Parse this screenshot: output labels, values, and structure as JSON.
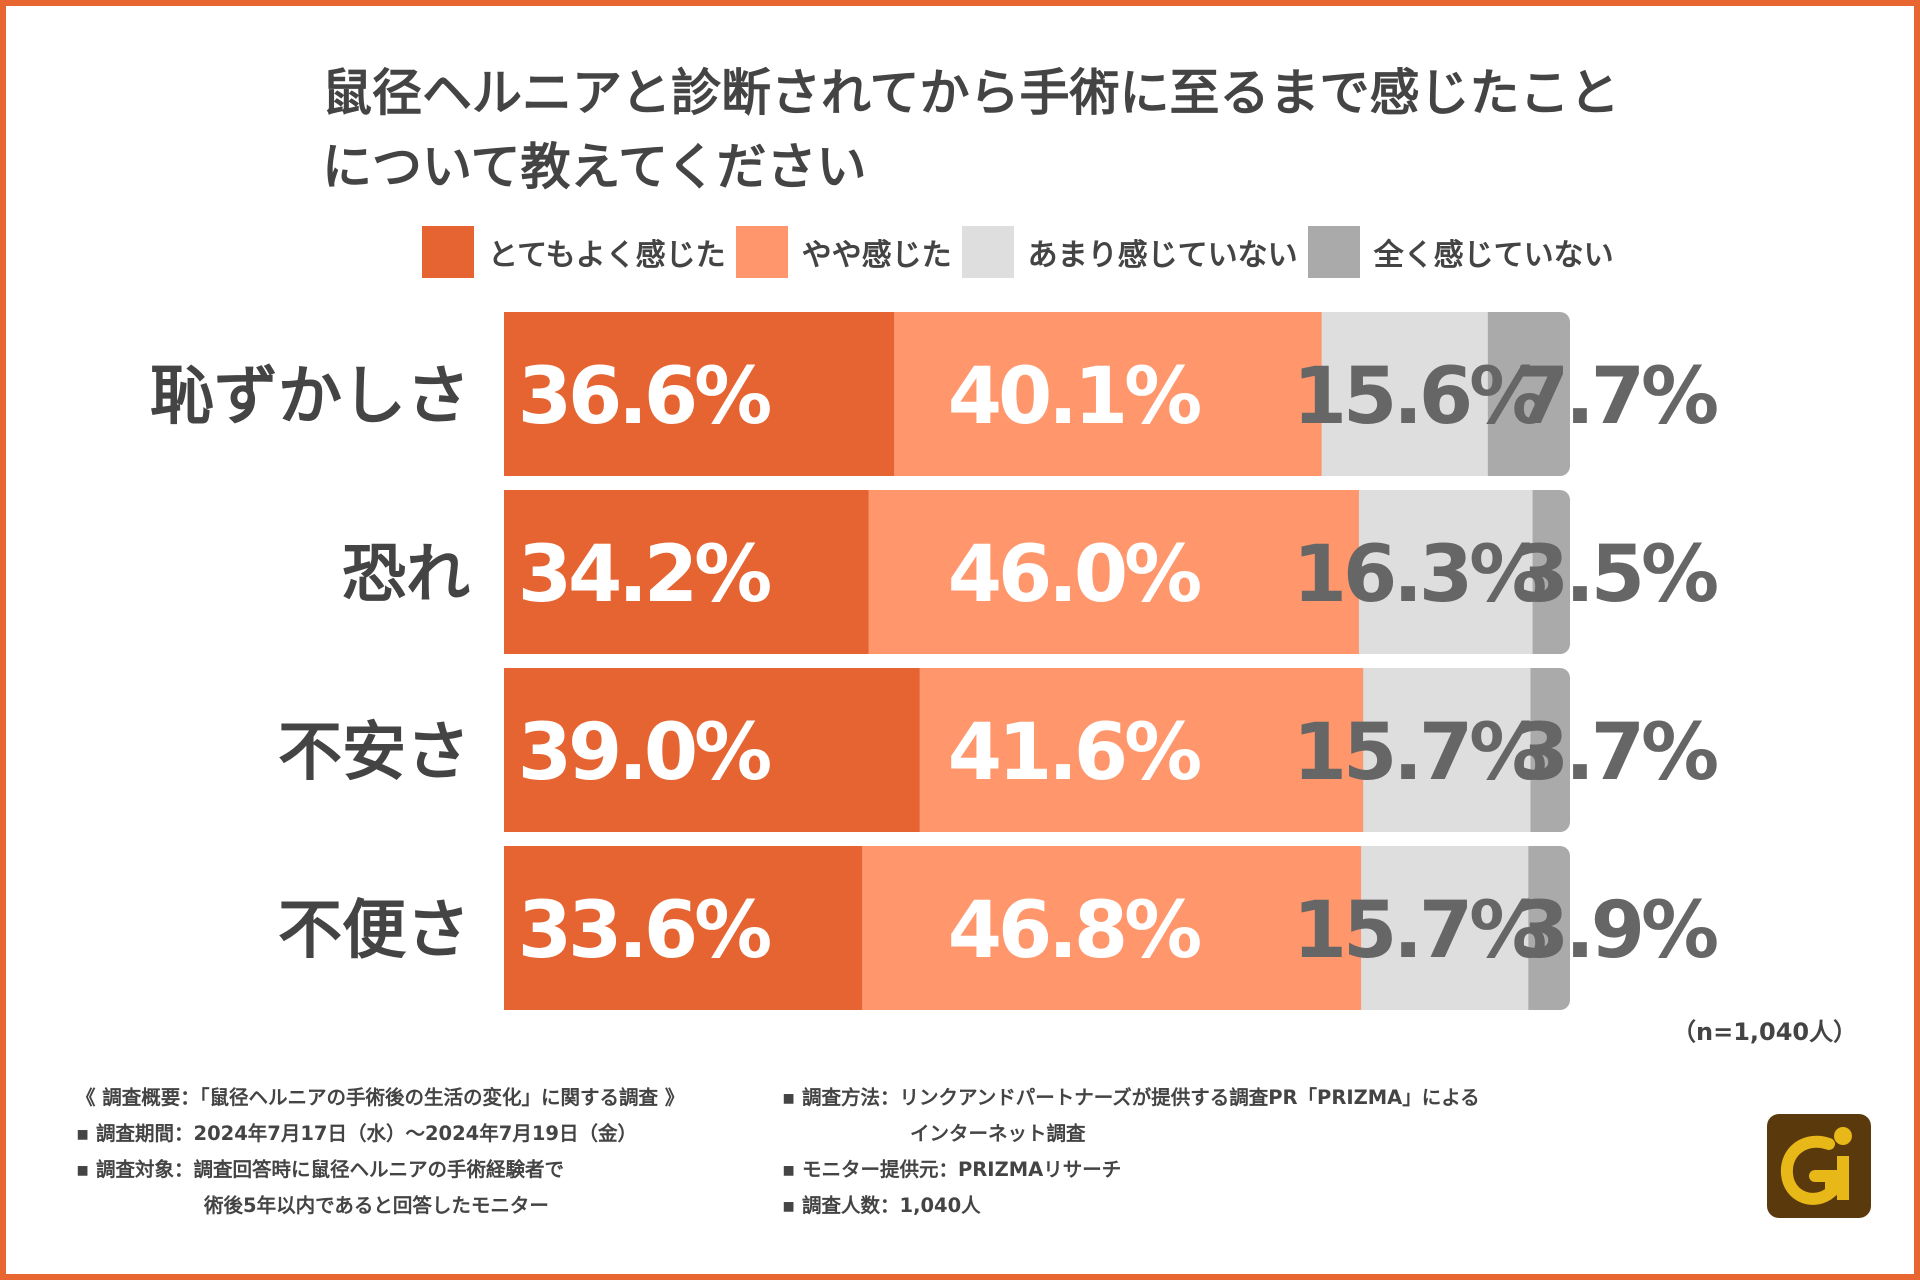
{
  "title": {
    "line1": "鼠径ヘルニアと診断されてから手術に至るまで感じたこと",
    "line2": "について教えてください"
  },
  "legend": [
    {
      "label": "とてもよく感じた",
      "color": "#e66432"
    },
    {
      "label": "やや感じた",
      "color": "#ff966c"
    },
    {
      "label": "あまり感じていない",
      "color": "#dedede"
    },
    {
      "label": "全く感じていない",
      "color": "#aaaaaa"
    }
  ],
  "chart_data": {
    "type": "bar",
    "orientation": "horizontal",
    "stacked": true,
    "percent_stacked": true,
    "categories": [
      "恥ずかしさ",
      "恐れ",
      "不安さ",
      "不便さ"
    ],
    "series": [
      {
        "name": "とてもよく感じた",
        "values": [
          36.6,
          34.2,
          39.0,
          33.6
        ],
        "labels": [
          "36.6%",
          "34.2%",
          "39.0%",
          "33.6%"
        ],
        "color": "#e66432",
        "label_color": "#ffffff"
      },
      {
        "name": "やや感じた",
        "values": [
          40.1,
          46.0,
          41.6,
          46.8
        ],
        "labels": [
          "40.1%",
          "46.0%",
          "41.6%",
          "46.8%"
        ],
        "color": "#ff966c",
        "label_color": "#ffffff"
      },
      {
        "name": "あまり感じていない",
        "values": [
          15.6,
          16.3,
          15.7,
          15.7
        ],
        "labels": [
          "15.6%",
          "16.3%",
          "15.7%",
          "15.7%"
        ],
        "color": "#dedede",
        "label_color": "#666666"
      },
      {
        "name": "全く感じていない",
        "values": [
          7.7,
          3.5,
          3.7,
          3.9
        ],
        "labels": [
          "7.7%",
          "3.5%",
          "3.7%",
          "3.9%"
        ],
        "color": "#aaaaaa",
        "label_color": "#666666"
      }
    ],
    "xlim": [
      0,
      100
    ],
    "legend_position": "top"
  },
  "sample_note": "（n=1,040人）",
  "footer": {
    "left": [
      "《 調査概要：「鼠径ヘルニアの手術後の生活の変化」に関する調査 》",
      "▪ 調査期間：2024年7月17日（水）～2024年7月19日（金）",
      "▪ 調査対象：調査回答時に鼠径ヘルニアの手術経験者で",
      "術後5年以内であると回答したモニター"
    ],
    "right": [
      "▪ 調査方法：リンクアンドパートナーズが提供する調査PR「PRIZMA」による",
      "インターネット調査",
      "▪ モニター提供元：PRIZMAリサーチ",
      "▪ 調査人数：1,040人"
    ]
  },
  "colors": {
    "frame": "#e8662f",
    "text": "#444444",
    "logo_bg": "#5a3a0c",
    "logo_gold": "#e8b818"
  }
}
